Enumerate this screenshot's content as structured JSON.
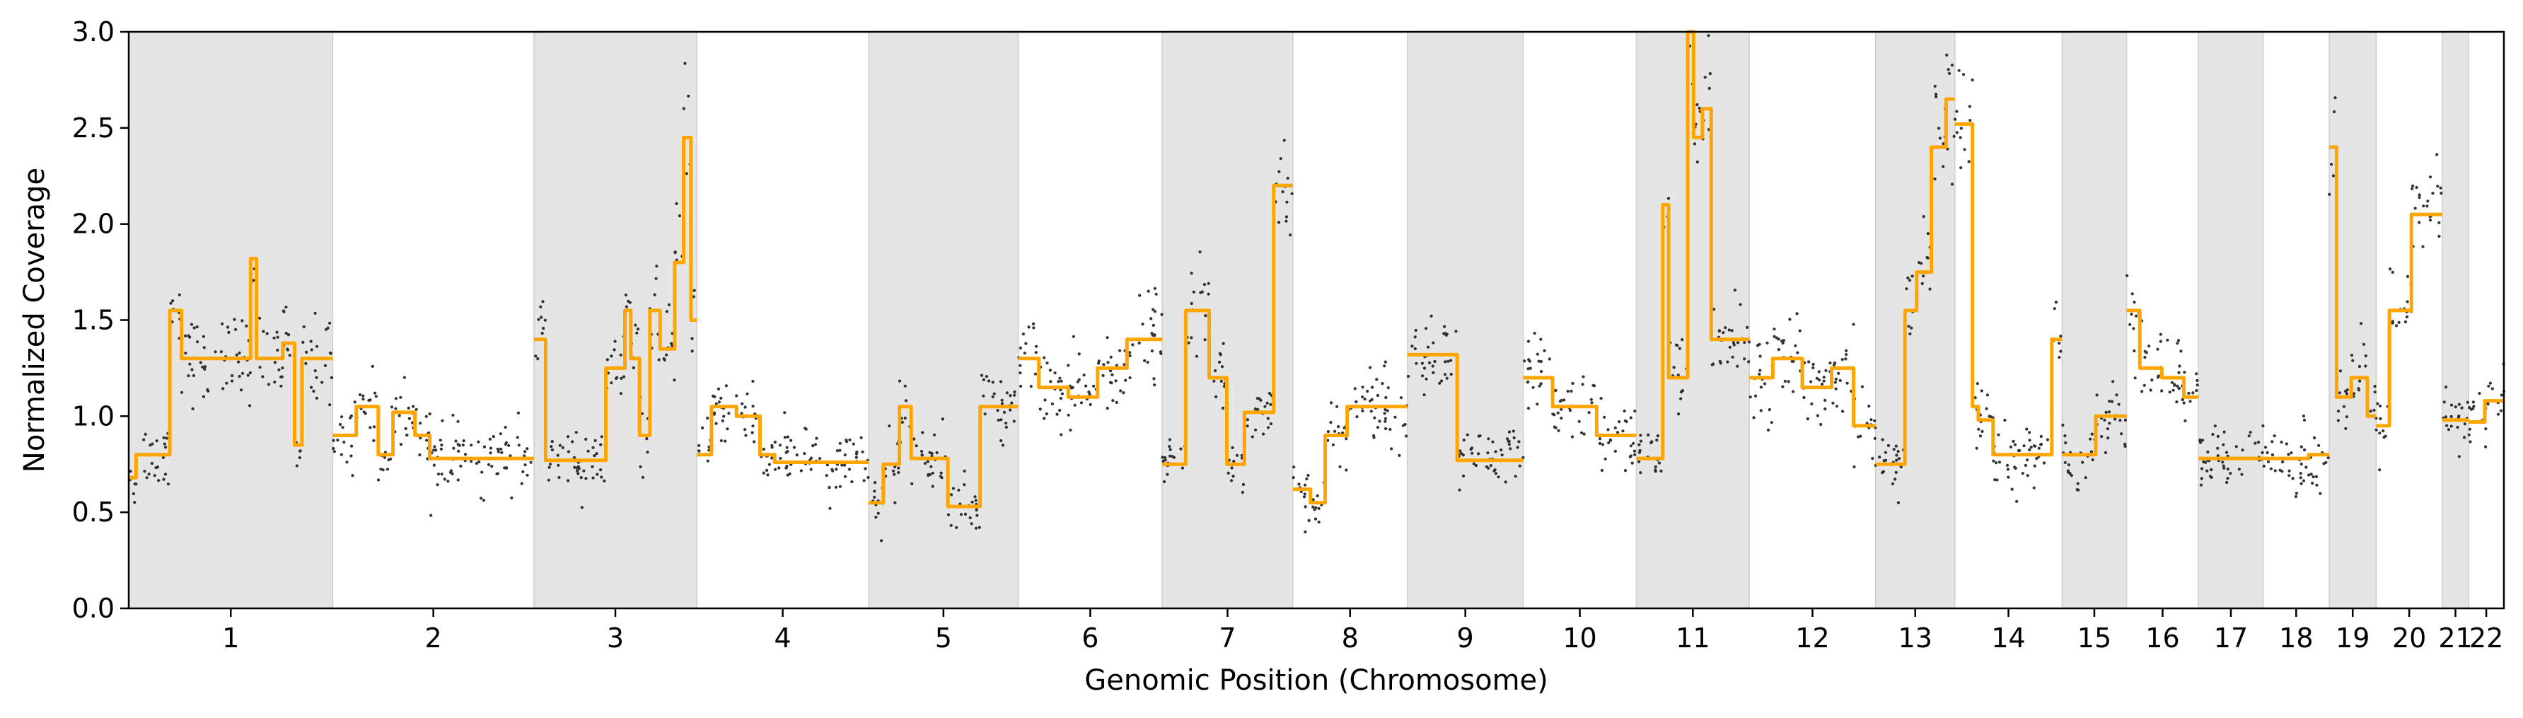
{
  "chart_data": {
    "type": "scatter",
    "xlabel": "Genomic Position (Chromosome)",
    "ylabel": "Normalized Coverage",
    "ylim": [
      0.0,
      3.0
    ],
    "yticks": [
      "0.0",
      "0.5",
      "1.0",
      "1.5",
      "2.0",
      "2.5",
      "3.0"
    ],
    "grid": false,
    "legend": "none",
    "chromosomes": [
      {
        "label": "1",
        "start": 0,
        "end": 1.39,
        "shaded": true,
        "segments": [
          [
            0,
            0.05,
            0.68
          ],
          [
            0.05,
            0.28,
            0.8
          ],
          [
            0.28,
            0.36,
            1.55
          ],
          [
            0.36,
            0.58,
            1.3
          ],
          [
            0.58,
            0.83,
            1.3
          ],
          [
            0.83,
            0.87,
            1.82
          ],
          [
            0.87,
            1.05,
            1.3
          ],
          [
            1.05,
            1.13,
            1.38
          ],
          [
            1.13,
            1.18,
            0.85
          ],
          [
            1.18,
            1.39,
            1.3
          ]
        ]
      },
      {
        "label": "2",
        "start": 1.39,
        "end": 2.76,
        "shaded": false,
        "segments": [
          [
            1.39,
            1.55,
            0.9
          ],
          [
            1.55,
            1.7,
            1.05
          ],
          [
            1.7,
            1.8,
            0.8
          ],
          [
            1.8,
            1.95,
            1.02
          ],
          [
            1.95,
            2.05,
            0.9
          ],
          [
            2.05,
            2.76,
            0.78
          ]
        ]
      },
      {
        "label": "3",
        "start": 2.76,
        "end": 3.87,
        "shaded": true,
        "segments": [
          [
            2.76,
            2.84,
            1.4
          ],
          [
            2.84,
            3.25,
            0.77
          ],
          [
            3.25,
            3.38,
            1.25
          ],
          [
            3.38,
            3.42,
            1.55
          ],
          [
            3.42,
            3.48,
            1.3
          ],
          [
            3.48,
            3.55,
            0.9
          ],
          [
            3.55,
            3.62,
            1.55
          ],
          [
            3.62,
            3.72,
            1.35
          ],
          [
            3.72,
            3.78,
            1.8
          ],
          [
            3.78,
            3.83,
            2.45
          ],
          [
            3.83,
            3.87,
            1.5
          ]
        ]
      },
      {
        "label": "4",
        "start": 3.87,
        "end": 5.04,
        "shaded": false,
        "segments": [
          [
            3.87,
            3.97,
            0.8
          ],
          [
            3.97,
            4.14,
            1.05
          ],
          [
            4.14,
            4.3,
            1.0
          ],
          [
            4.3,
            4.4,
            0.8
          ],
          [
            4.4,
            5.04,
            0.76
          ]
        ]
      },
      {
        "label": "5",
        "start": 5.04,
        "end": 6.06,
        "shaded": true,
        "segments": [
          [
            5.04,
            5.14,
            0.55
          ],
          [
            5.14,
            5.25,
            0.75
          ],
          [
            5.25,
            5.33,
            1.05
          ],
          [
            5.33,
            5.58,
            0.78
          ],
          [
            5.58,
            5.8,
            0.53
          ],
          [
            5.8,
            6.06,
            1.05
          ]
        ]
      },
      {
        "label": "6",
        "start": 6.06,
        "end": 7.04,
        "shaded": false,
        "segments": [
          [
            6.06,
            6.2,
            1.3
          ],
          [
            6.2,
            6.4,
            1.15
          ],
          [
            6.4,
            6.6,
            1.1
          ],
          [
            6.6,
            6.8,
            1.25
          ],
          [
            6.8,
            7.04,
            1.4
          ]
        ]
      },
      {
        "label": "7",
        "start": 7.04,
        "end": 7.93,
        "shaded": true,
        "segments": [
          [
            7.04,
            7.2,
            0.75
          ],
          [
            7.2,
            7.36,
            1.55
          ],
          [
            7.36,
            7.48,
            1.2
          ],
          [
            7.48,
            7.6,
            0.75
          ],
          [
            7.6,
            7.8,
            1.02
          ],
          [
            7.8,
            7.93,
            2.2
          ]
        ]
      },
      {
        "label": "8",
        "start": 7.93,
        "end": 8.71,
        "shaded": false,
        "segments": [
          [
            7.93,
            8.05,
            0.62
          ],
          [
            8.05,
            8.15,
            0.55
          ],
          [
            8.15,
            8.3,
            0.9
          ],
          [
            8.3,
            8.71,
            1.05
          ]
        ]
      },
      {
        "label": "9",
        "start": 8.71,
        "end": 9.5,
        "shaded": true,
        "segments": [
          [
            8.71,
            9.05,
            1.32
          ],
          [
            9.05,
            9.5,
            0.77
          ]
        ]
      },
      {
        "label": "10",
        "start": 9.5,
        "end": 10.27,
        "shaded": false,
        "segments": [
          [
            9.5,
            9.7,
            1.2
          ],
          [
            9.7,
            10.0,
            1.05
          ],
          [
            10.0,
            10.27,
            0.9
          ]
        ]
      },
      {
        "label": "11",
        "start": 10.27,
        "end": 11.04,
        "shaded": true,
        "segments": [
          [
            10.27,
            10.45,
            0.78
          ],
          [
            10.45,
            10.49,
            2.1
          ],
          [
            10.49,
            10.62,
            1.2
          ],
          [
            10.62,
            10.66,
            3.0
          ],
          [
            10.66,
            10.72,
            2.45
          ],
          [
            10.72,
            10.78,
            2.6
          ],
          [
            10.78,
            11.04,
            1.4
          ]
        ]
      },
      {
        "label": "12",
        "start": 11.04,
        "end": 11.9,
        "shaded": false,
        "segments": [
          [
            11.04,
            11.2,
            1.2
          ],
          [
            11.2,
            11.4,
            1.3
          ],
          [
            11.4,
            11.6,
            1.15
          ],
          [
            11.6,
            11.75,
            1.25
          ],
          [
            11.75,
            11.9,
            0.95
          ]
        ]
      },
      {
        "label": "13",
        "start": 11.9,
        "end": 12.44,
        "shaded": true,
        "segments": [
          [
            11.9,
            12.1,
            0.75
          ],
          [
            12.1,
            12.18,
            1.55
          ],
          [
            12.18,
            12.28,
            1.75
          ],
          [
            12.28,
            12.38,
            2.4
          ],
          [
            12.38,
            12.44,
            2.65
          ]
        ]
      },
      {
        "label": "14",
        "start": 12.44,
        "end": 13.17,
        "shaded": false,
        "segments": [
          [
            12.44,
            12.56,
            2.52
          ],
          [
            12.56,
            12.6,
            1.05
          ],
          [
            12.6,
            12.7,
            0.98
          ],
          [
            12.7,
            12.85,
            0.8
          ],
          [
            12.85,
            13.1,
            0.8
          ],
          [
            13.1,
            13.17,
            1.4
          ]
        ]
      },
      {
        "label": "15",
        "start": 13.17,
        "end": 13.61,
        "shaded": true,
        "segments": [
          [
            13.17,
            13.4,
            0.8
          ],
          [
            13.4,
            13.61,
            1.0
          ]
        ]
      },
      {
        "label": "16",
        "start": 13.61,
        "end": 14.1,
        "shaded": false,
        "segments": [
          [
            13.61,
            13.7,
            1.55
          ],
          [
            13.7,
            13.85,
            1.25
          ],
          [
            13.85,
            14.0,
            1.2
          ],
          [
            14.0,
            14.1,
            1.1
          ]
        ]
      },
      {
        "label": "17",
        "start": 14.1,
        "end": 14.54,
        "shaded": true,
        "segments": [
          [
            14.1,
            14.54,
            0.78
          ]
        ]
      },
      {
        "label": "18",
        "start": 14.54,
        "end": 14.99,
        "shaded": false,
        "segments": [
          [
            14.54,
            14.85,
            0.78
          ],
          [
            14.85,
            14.99,
            0.8
          ]
        ]
      },
      {
        "label": "19",
        "start": 14.99,
        "end": 15.31,
        "shaded": true,
        "segments": [
          [
            14.99,
            15.04,
            2.4
          ],
          [
            15.04,
            15.14,
            1.1
          ],
          [
            15.14,
            15.25,
            1.2
          ],
          [
            15.25,
            15.31,
            1.0
          ]
        ]
      },
      {
        "label": "20",
        "start": 15.31,
        "end": 15.76,
        "shaded": false,
        "segments": [
          [
            15.31,
            15.4,
            0.95
          ],
          [
            15.4,
            15.55,
            1.55
          ],
          [
            15.55,
            15.76,
            2.05
          ]
        ]
      },
      {
        "label": "21",
        "start": 15.76,
        "end": 15.94,
        "shaded": true,
        "segments": [
          [
            15.76,
            15.94,
            0.98
          ]
        ]
      },
      {
        "label": "22",
        "start": 15.94,
        "end": 16.18,
        "shaded": false,
        "segments": [
          [
            15.94,
            16.05,
            0.97
          ],
          [
            16.05,
            16.18,
            1.08
          ]
        ]
      }
    ],
    "xlim": [
      0,
      16.18
    ],
    "colors": {
      "points": "#111111",
      "segment_line": "#ffa500",
      "shade": "#e5e5e5",
      "shade_edge": "#cfcfcf",
      "axes": "#000000"
    }
  }
}
